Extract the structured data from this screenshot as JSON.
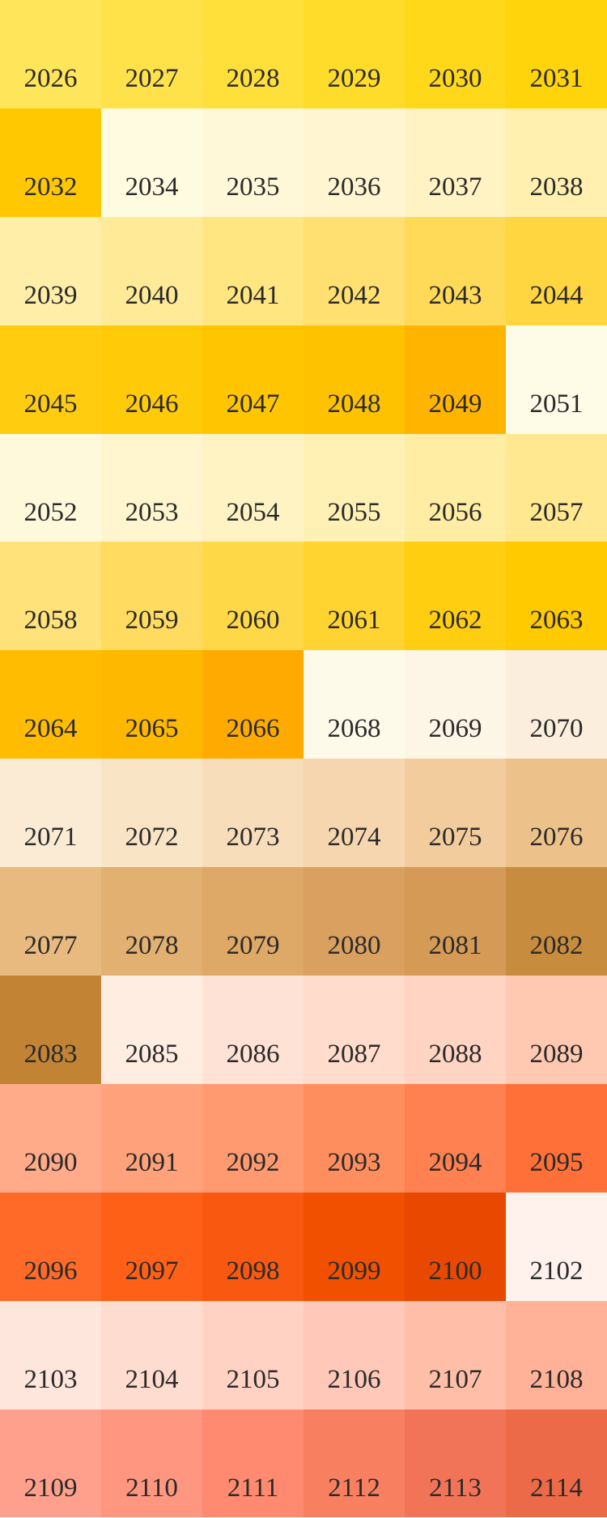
{
  "rows": [
    [
      {
        "label": "2026",
        "color": "#FFE55A"
      },
      {
        "label": "2027",
        "color": "#FFE24A"
      },
      {
        "label": "2028",
        "color": "#FFDF3A"
      },
      {
        "label": "2029",
        "color": "#FFDC2A"
      },
      {
        "label": "2030",
        "color": "#FFD81A"
      },
      {
        "label": "2031",
        "color": "#FFD40A"
      }
    ],
    [
      {
        "label": "2032",
        "color": "#FFC800"
      },
      {
        "label": "2034",
        "color": "#FFFBE0"
      },
      {
        "label": "2035",
        "color": "#FFF8D8"
      },
      {
        "label": "2036",
        "color": "#FFF5D0"
      },
      {
        "label": "2037",
        "color": "#FFF3C4"
      },
      {
        "label": "2038",
        "color": "#FFF0B0"
      }
    ],
    [
      {
        "label": "2039",
        "color": "#FFEEA8"
      },
      {
        "label": "2040",
        "color": "#FFEA98"
      },
      {
        "label": "2041",
        "color": "#FFE680"
      },
      {
        "label": "2042",
        "color": "#FFE070"
      },
      {
        "label": "2043",
        "color": "#FFDA58"
      },
      {
        "label": "2044",
        "color": "#FFD640"
      }
    ],
    [
      {
        "label": "2045",
        "color": "#FFCC10"
      },
      {
        "label": "2046",
        "color": "#FFCA08"
      },
      {
        "label": "2047",
        "color": "#FFC600"
      },
      {
        "label": "2048",
        "color": "#FFC200"
      },
      {
        "label": "2049",
        "color": "#FFB400"
      },
      {
        "label": "2051",
        "color": "#FEFBE6"
      }
    ],
    [
      {
        "label": "2052",
        "color": "#FFF9DC"
      },
      {
        "label": "2053",
        "color": "#FFF6D0"
      },
      {
        "label": "2054",
        "color": "#FFF3C4"
      },
      {
        "label": "2055",
        "color": "#FFF0B4"
      },
      {
        "label": "2056",
        "color": "#FFEDA4"
      },
      {
        "label": "2057",
        "color": "#FFE890"
      }
    ],
    [
      {
        "label": "2058",
        "color": "#FFE27A"
      },
      {
        "label": "2059",
        "color": "#FFDC60"
      },
      {
        "label": "2060",
        "color": "#FFD848"
      },
      {
        "label": "2061",
        "color": "#FFD430"
      },
      {
        "label": "2062",
        "color": "#FFCE10"
      },
      {
        "label": "2063",
        "color": "#FFCA00"
      }
    ],
    [
      {
        "label": "2064",
        "color": "#FFBC00"
      },
      {
        "label": "2065",
        "color": "#FFB800"
      },
      {
        "label": "2066",
        "color": "#FFAA00"
      },
      {
        "label": "2068",
        "color": "#FEFAEA"
      },
      {
        "label": "2069",
        "color": "#FDF6E6"
      },
      {
        "label": "2070",
        "color": "#FCEEDC"
      }
    ],
    [
      {
        "label": "2071",
        "color": "#FBEBD4"
      },
      {
        "label": "2072",
        "color": "#F9E4C6"
      },
      {
        "label": "2073",
        "color": "#F8DDBA"
      },
      {
        "label": "2074",
        "color": "#F6D6AE"
      },
      {
        "label": "2075",
        "color": "#F2CC9C"
      },
      {
        "label": "2076",
        "color": "#EDC28A"
      }
    ],
    [
      {
        "label": "2077",
        "color": "#E8BA80"
      },
      {
        "label": "2078",
        "color": "#E2B070"
      },
      {
        "label": "2079",
        "color": "#DEA866"
      },
      {
        "label": "2080",
        "color": "#D9A060"
      },
      {
        "label": "2081",
        "color": "#D49A56"
      },
      {
        "label": "2082",
        "color": "#C88C3E"
      }
    ],
    [
      {
        "label": "2083",
        "color": "#C28434"
      },
      {
        "label": "2085",
        "color": "#FFEDE2"
      },
      {
        "label": "2086",
        "color": "#FFE2D6"
      },
      {
        "label": "2087",
        "color": "#FFDCCC"
      },
      {
        "label": "2088",
        "color": "#FFD4C2"
      },
      {
        "label": "2089",
        "color": "#FFC8B0"
      }
    ],
    [
      {
        "label": "2090",
        "color": "#FFAA88"
      },
      {
        "label": "2091",
        "color": "#FFA27C"
      },
      {
        "label": "2092",
        "color": "#FF9A70"
      },
      {
        "label": "2093",
        "color": "#FF8E5E"
      },
      {
        "label": "2094",
        "color": "#FF8050"
      },
      {
        "label": "2095",
        "color": "#FF7038"
      }
    ],
    [
      {
        "label": "2096",
        "color": "#FF6A28"
      },
      {
        "label": "2097",
        "color": "#FF6018"
      },
      {
        "label": "2098",
        "color": "#F85810"
      },
      {
        "label": "2099",
        "color": "#F05000"
      },
      {
        "label": "2100",
        "color": "#E84800"
      },
      {
        "label": "2102",
        "color": "#FFF2EC"
      }
    ],
    [
      {
        "label": "2103",
        "color": "#FFE6DC"
      },
      {
        "label": "2104",
        "color": "#FFDCD0"
      },
      {
        "label": "2105",
        "color": "#FFD2C4"
      },
      {
        "label": "2106",
        "color": "#FFC8B8"
      },
      {
        "label": "2107",
        "color": "#FFBEA8"
      },
      {
        "label": "2108",
        "color": "#FFB298"
      }
    ],
    [
      {
        "label": "2109",
        "color": "#FFA08C"
      },
      {
        "label": "2110",
        "color": "#FF9680"
      },
      {
        "label": "2111",
        "color": "#FF8A70"
      },
      {
        "label": "2112",
        "color": "#F88060"
      },
      {
        "label": "2113",
        "color": "#F27458"
      },
      {
        "label": "2114",
        "color": "#EC6A48"
      }
    ]
  ]
}
